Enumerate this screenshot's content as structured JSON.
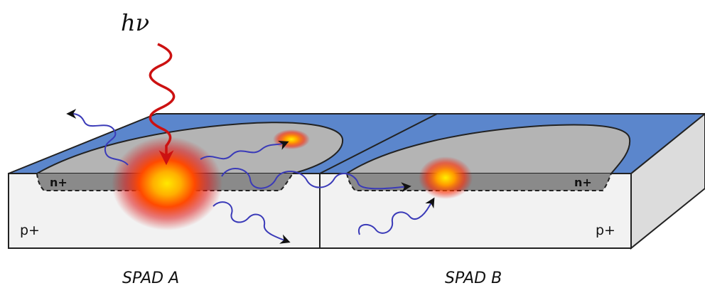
{
  "photon_label": "hν",
  "colors": {
    "top_surface": "#5b86cc",
    "chip_front": "#f2f2f2",
    "chip_side": "#dcdcdc",
    "active_area": "#b4b4b4",
    "junction": "#8a8a8a",
    "photon": "#cc1111",
    "emission": "#3a3ab8",
    "outline": "#222222"
  },
  "regions": {
    "a_doping": "n+",
    "a_substrate": "p+",
    "b_doping": "n+",
    "b_substrate": "p+"
  },
  "captions": {
    "spad_a": "SPAD A",
    "spad_b": "SPAD B"
  },
  "icons": {
    "incident_photon": "wavy-arrow-red",
    "secondary_photons": "wavy-arrow-blue"
  }
}
